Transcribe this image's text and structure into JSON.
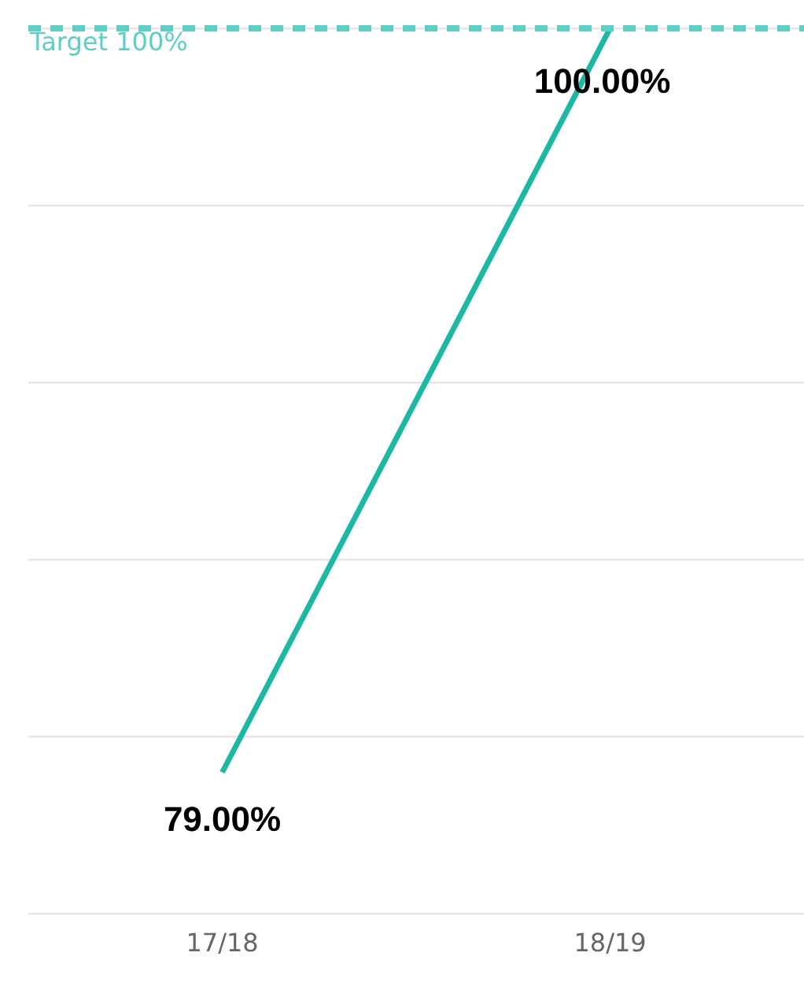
{
  "chart_data": {
    "type": "line",
    "categories": [
      "17/18",
      "18/19"
    ],
    "series": [
      {
        "color": "#1cb8a4",
        "values": [
          79,
          100
        ],
        "value_labels": [
          "79.00%",
          "100.00%"
        ]
      }
    ],
    "ylim": [
      75,
      100
    ],
    "yticks": [
      {
        "value": 75,
        "label": null
      },
      {
        "value": 80,
        "label": null
      },
      {
        "value": 85,
        "label": null
      },
      {
        "value": 90,
        "label": null
      },
      {
        "value": 95,
        "label": null
      },
      {
        "value": 100,
        "label": null
      }
    ],
    "tick_labels": "x",
    "grid": "y",
    "legend": false,
    "marker": "none",
    "line_style": "solid",
    "ref_lines": [
      {
        "axis": "y",
        "value": 100,
        "label": "Target 100%",
        "color": "#5fcfc5",
        "line_style": "dashed"
      }
    ]
  }
}
